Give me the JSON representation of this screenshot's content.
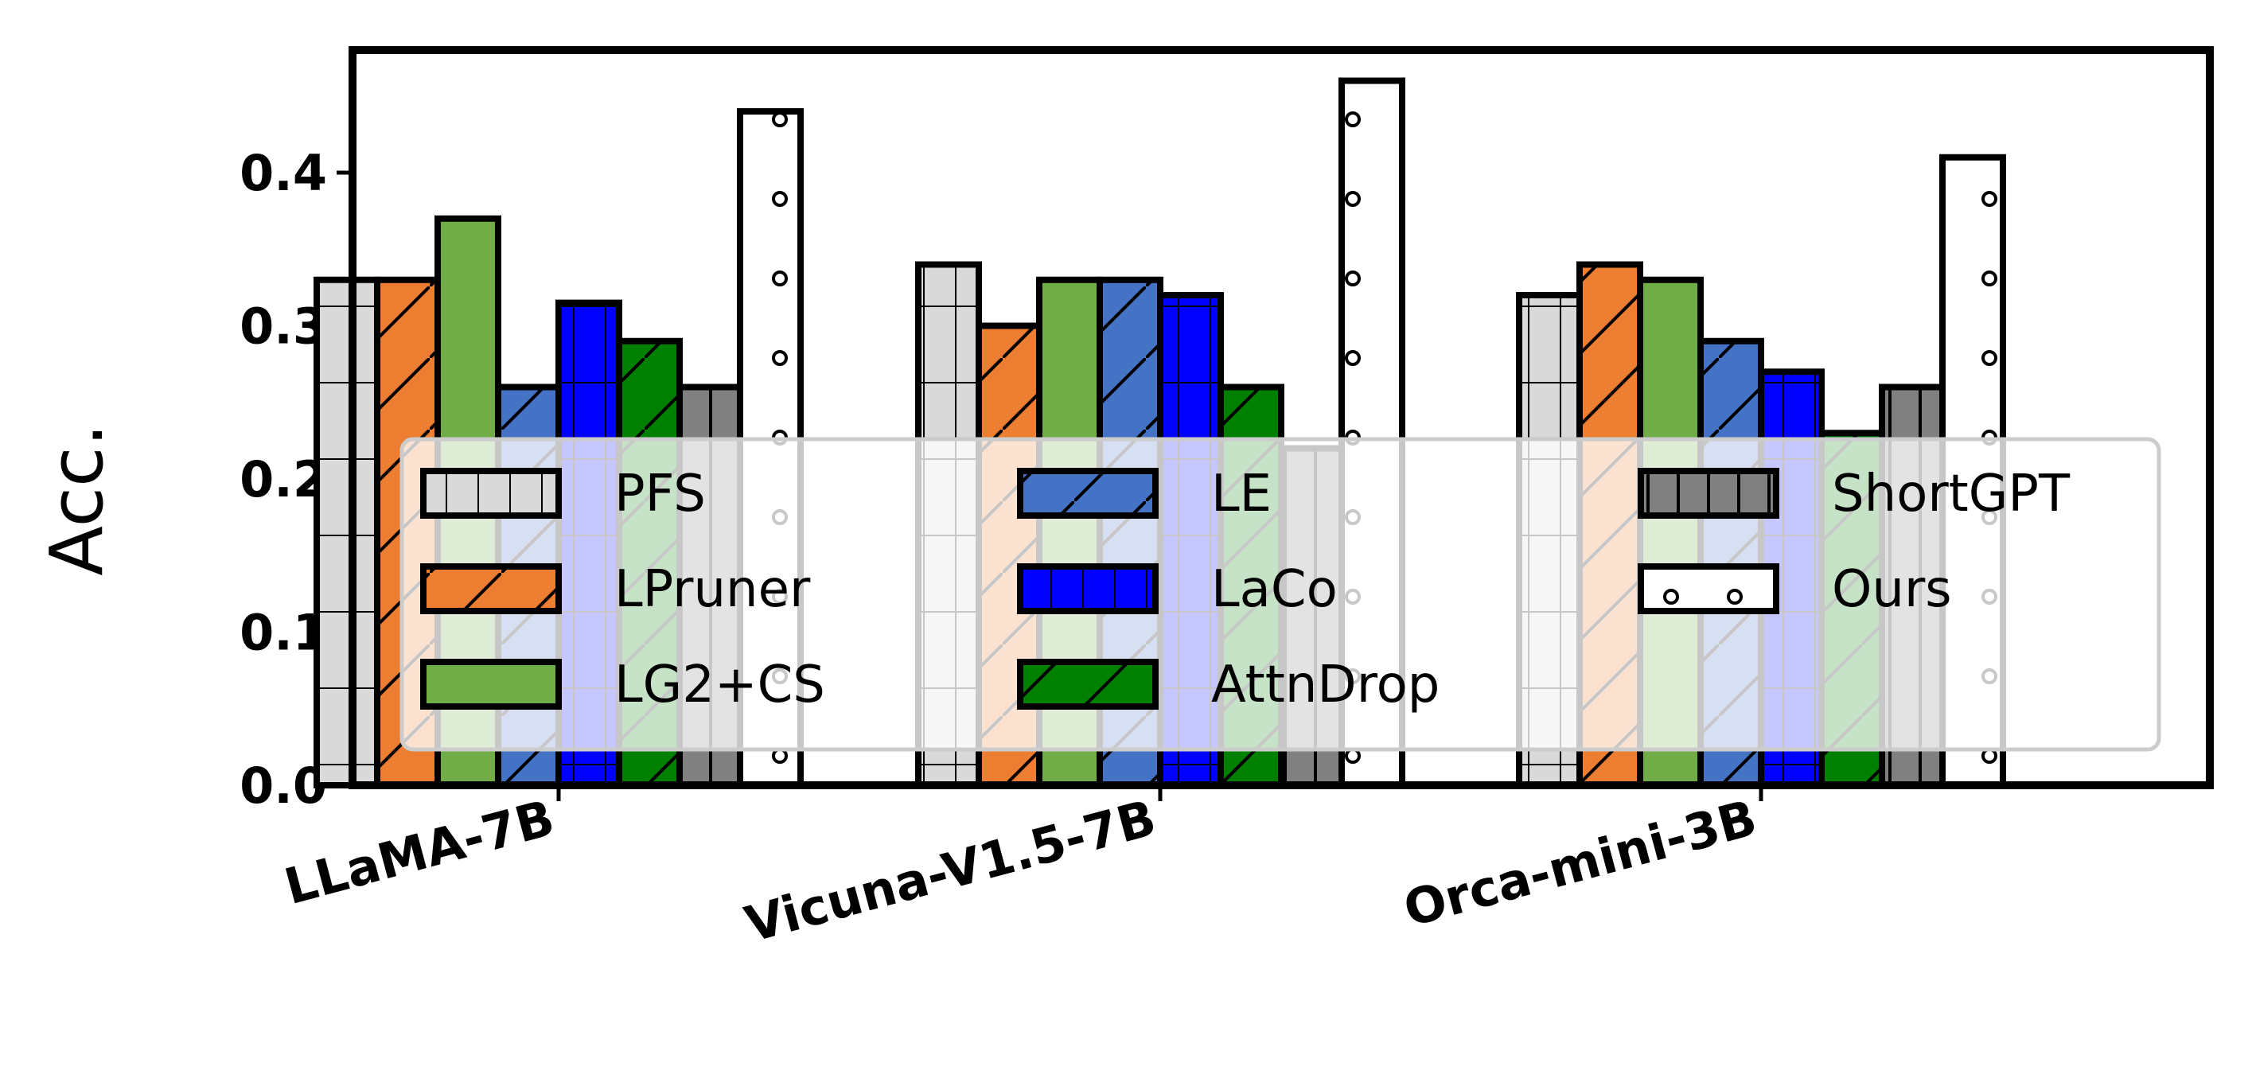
{
  "chart_data": {
    "type": "bar",
    "title": "",
    "xlabel": "",
    "ylabel": "Acc.",
    "ylim": [
      0,
      0.48
    ],
    "yticks": [
      "0.0",
      "0.1",
      "0.2",
      "0.3",
      "0.4"
    ],
    "ytick_values": [
      0.0,
      0.1,
      0.2,
      0.3,
      0.4
    ],
    "categories": [
      "LLaMA-7B",
      "Vicuna-V1.5-7B",
      "Orca-mini-3B"
    ],
    "legend_position": "lower-center",
    "series": [
      {
        "name": "PFS",
        "color": "#d9d9d9",
        "hatch": "plus",
        "values": [
          0.33,
          0.34,
          0.32
        ]
      },
      {
        "name": "LPruner",
        "color": "#ed7d31",
        "hatch": "slash",
        "values": [
          0.33,
          0.3,
          0.34
        ]
      },
      {
        "name": "LG2+CS",
        "color": "#70ad47",
        "hatch": "none",
        "values": [
          0.37,
          0.33,
          0.33
        ]
      },
      {
        "name": "LE",
        "color": "#4472c4",
        "hatch": "slash",
        "values": [
          0.26,
          0.33,
          0.29
        ]
      },
      {
        "name": "LaCo",
        "color": "#0000ff",
        "hatch": "plus",
        "values": [
          0.315,
          0.32,
          0.27
        ]
      },
      {
        "name": "AttnDrop",
        "color": "#008000",
        "hatch": "slash",
        "values": [
          0.29,
          0.26,
          0.23
        ]
      },
      {
        "name": "ShortGPT",
        "color": "#808080",
        "hatch": "vline",
        "values": [
          0.26,
          0.22,
          0.26
        ]
      },
      {
        "name": "Ours",
        "color": "#ffffff",
        "hatch": "dots",
        "values": [
          0.44,
          0.46,
          0.41
        ]
      }
    ]
  }
}
